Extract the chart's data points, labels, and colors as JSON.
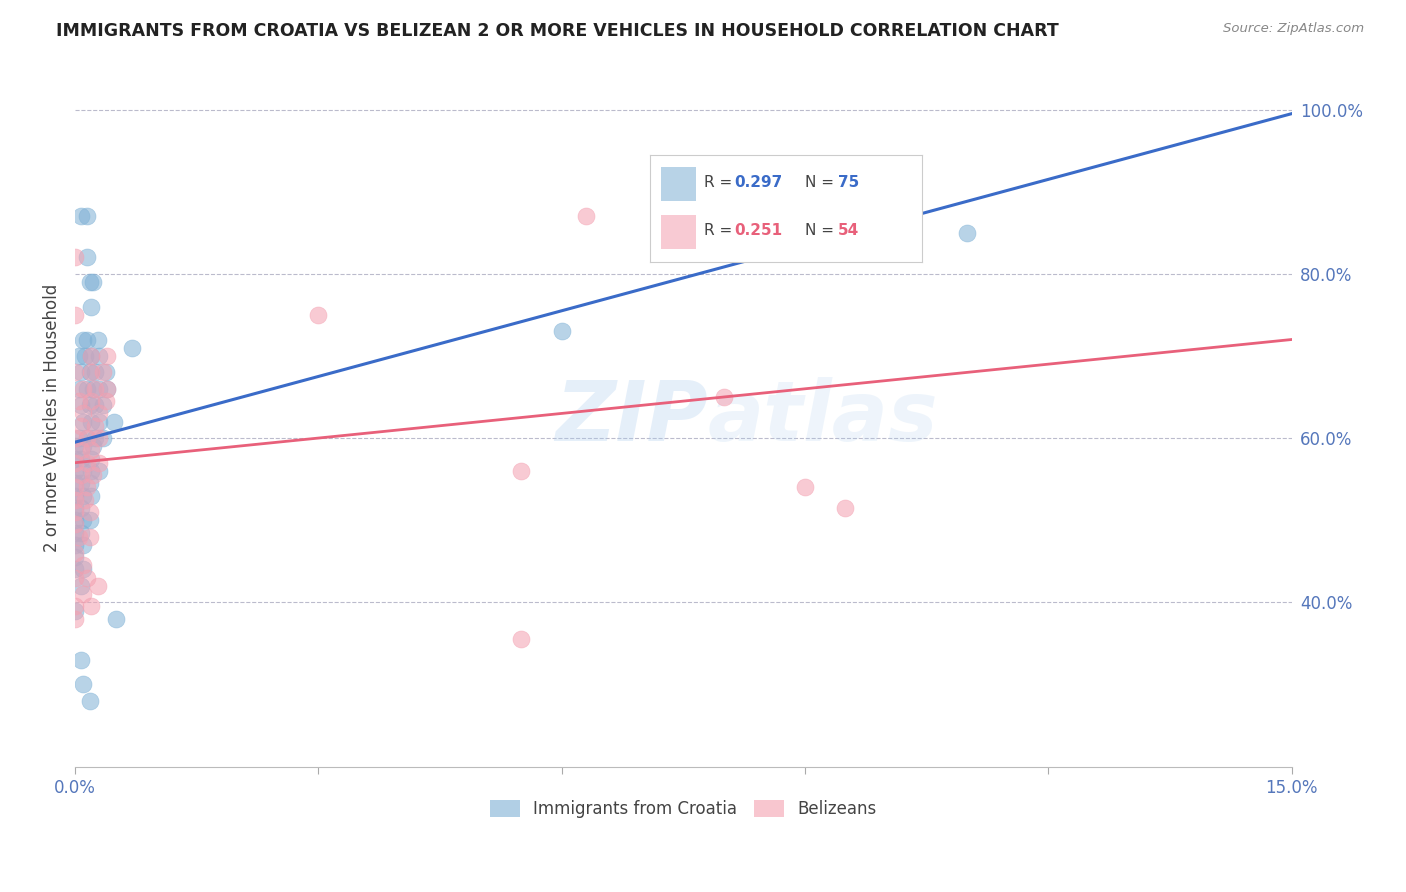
{
  "title": "IMMIGRANTS FROM CROATIA VS BELIZEAN 2 OR MORE VEHICLES IN HOUSEHOLD CORRELATION CHART",
  "source": "Source: ZipAtlas.com",
  "ylabel": "2 or more Vehicles in Household",
  "xlim": [
    0.0,
    0.15
  ],
  "ylim": [
    0.2,
    1.05
  ],
  "xtick_positions": [
    0.0,
    0.03,
    0.06,
    0.09,
    0.12,
    0.15
  ],
  "xticklabels": [
    "0.0%",
    "",
    "",
    "",
    "",
    "15.0%"
  ],
  "ytick_positions": [
    0.4,
    0.6,
    0.8,
    1.0
  ],
  "ytick_labels": [
    "40.0%",
    "60.0%",
    "80.0%",
    "100.0%"
  ],
  "watermark": "ZIPatlas",
  "legend_label_blue": "Immigrants from Croatia",
  "legend_label_pink": "Belizeans",
  "blue_color": "#7EB0D5",
  "pink_color": "#F4A0B0",
  "blue_line_color": "#3A6BC8",
  "pink_line_color": "#E8607A",
  "blue_line": [
    [
      0.0,
      0.595
    ],
    [
      0.15,
      0.995
    ]
  ],
  "pink_line": [
    [
      0.0,
      0.57
    ],
    [
      0.15,
      0.72
    ]
  ],
  "blue_scatter": [
    [
      0.0008,
      0.87
    ],
    [
      0.0015,
      0.87
    ],
    [
      0.0015,
      0.82
    ],
    [
      0.0018,
      0.79
    ],
    [
      0.0022,
      0.79
    ],
    [
      0.002,
      0.76
    ],
    [
      0.001,
      0.72
    ],
    [
      0.0015,
      0.72
    ],
    [
      0.0028,
      0.72
    ],
    [
      0.0005,
      0.7
    ],
    [
      0.0012,
      0.7
    ],
    [
      0.002,
      0.7
    ],
    [
      0.003,
      0.7
    ],
    [
      0.0008,
      0.68
    ],
    [
      0.0018,
      0.68
    ],
    [
      0.0025,
      0.68
    ],
    [
      0.0038,
      0.68
    ],
    [
      0.0005,
      0.66
    ],
    [
      0.0015,
      0.66
    ],
    [
      0.0022,
      0.66
    ],
    [
      0.003,
      0.66
    ],
    [
      0.004,
      0.66
    ],
    [
      0.0008,
      0.64
    ],
    [
      0.0018,
      0.64
    ],
    [
      0.0025,
      0.64
    ],
    [
      0.0035,
      0.64
    ],
    [
      0.001,
      0.62
    ],
    [
      0.002,
      0.62
    ],
    [
      0.003,
      0.62
    ],
    [
      0.0048,
      0.62
    ],
    [
      0.0005,
      0.6
    ],
    [
      0.0015,
      0.6
    ],
    [
      0.0025,
      0.6
    ],
    [
      0.0035,
      0.6
    ],
    [
      0.0,
      0.59
    ],
    [
      0.001,
      0.59
    ],
    [
      0.0022,
      0.59
    ],
    [
      0.0,
      0.575
    ],
    [
      0.0008,
      0.575
    ],
    [
      0.002,
      0.575
    ],
    [
      0.0,
      0.56
    ],
    [
      0.001,
      0.56
    ],
    [
      0.002,
      0.56
    ],
    [
      0.003,
      0.56
    ],
    [
      0.0,
      0.545
    ],
    [
      0.0008,
      0.545
    ],
    [
      0.0018,
      0.545
    ],
    [
      0.0,
      0.53
    ],
    [
      0.001,
      0.53
    ],
    [
      0.002,
      0.53
    ],
    [
      0.0,
      0.515
    ],
    [
      0.0008,
      0.515
    ],
    [
      0.0,
      0.5
    ],
    [
      0.001,
      0.5
    ],
    [
      0.0018,
      0.5
    ],
    [
      0.0,
      0.485
    ],
    [
      0.0008,
      0.485
    ],
    [
      0.0,
      0.47
    ],
    [
      0.001,
      0.47
    ],
    [
      0.0,
      0.455
    ],
    [
      0.0,
      0.44
    ],
    [
      0.001,
      0.44
    ],
    [
      0.0008,
      0.42
    ],
    [
      0.0,
      0.39
    ],
    [
      0.005,
      0.38
    ],
    [
      0.0008,
      0.33
    ],
    [
      0.001,
      0.3
    ],
    [
      0.0018,
      0.28
    ],
    [
      0.007,
      0.71
    ],
    [
      0.06,
      0.73
    ],
    [
      0.11,
      0.85
    ]
  ],
  "pink_scatter": [
    [
      0.0,
      0.82
    ],
    [
      0.063,
      0.87
    ],
    [
      0.0,
      0.75
    ],
    [
      0.03,
      0.75
    ],
    [
      0.002,
      0.7
    ],
    [
      0.004,
      0.7
    ],
    [
      0.0,
      0.68
    ],
    [
      0.002,
      0.68
    ],
    [
      0.0035,
      0.68
    ],
    [
      0.001,
      0.66
    ],
    [
      0.0025,
      0.66
    ],
    [
      0.004,
      0.66
    ],
    [
      0.0005,
      0.645
    ],
    [
      0.002,
      0.645
    ],
    [
      0.0038,
      0.645
    ],
    [
      0.001,
      0.63
    ],
    [
      0.003,
      0.63
    ],
    [
      0.0008,
      0.615
    ],
    [
      0.0025,
      0.615
    ],
    [
      0.0,
      0.6
    ],
    [
      0.0015,
      0.6
    ],
    [
      0.003,
      0.6
    ],
    [
      0.0008,
      0.585
    ],
    [
      0.002,
      0.585
    ],
    [
      0.0,
      0.57
    ],
    [
      0.0015,
      0.57
    ],
    [
      0.003,
      0.57
    ],
    [
      0.0008,
      0.555
    ],
    [
      0.0022,
      0.555
    ],
    [
      0.0,
      0.54
    ],
    [
      0.0015,
      0.54
    ],
    [
      0.0,
      0.525
    ],
    [
      0.0012,
      0.525
    ],
    [
      0.0,
      0.51
    ],
    [
      0.0018,
      0.51
    ],
    [
      0.0,
      0.495
    ],
    [
      0.0005,
      0.48
    ],
    [
      0.0018,
      0.48
    ],
    [
      0.0,
      0.46
    ],
    [
      0.001,
      0.445
    ],
    [
      0.0,
      0.43
    ],
    [
      0.0015,
      0.43
    ],
    [
      0.001,
      0.41
    ],
    [
      0.0,
      0.395
    ],
    [
      0.002,
      0.395
    ],
    [
      0.0,
      0.38
    ],
    [
      0.0028,
      0.42
    ],
    [
      0.08,
      0.65
    ],
    [
      0.09,
      0.54
    ],
    [
      0.095,
      0.515
    ],
    [
      0.055,
      0.56
    ],
    [
      0.055,
      0.355
    ]
  ]
}
